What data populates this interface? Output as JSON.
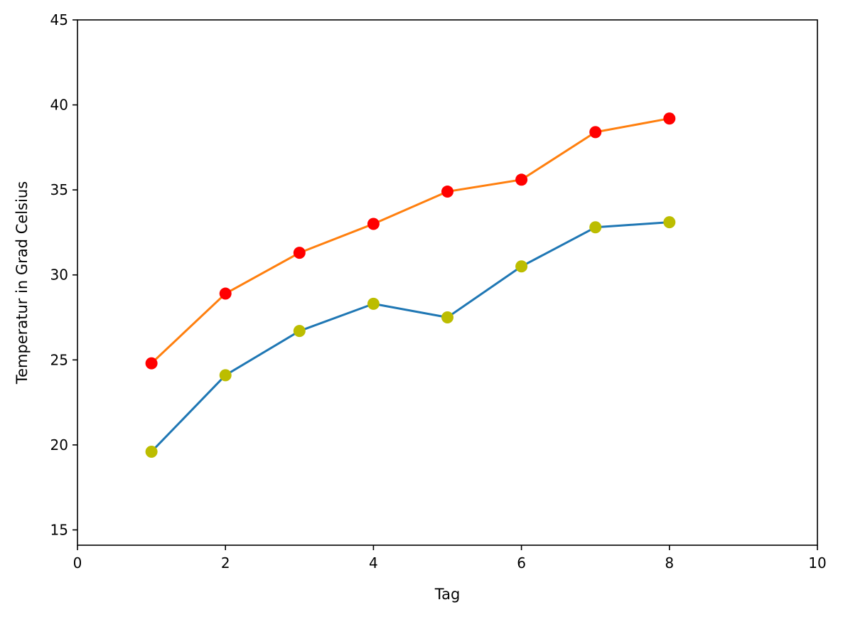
{
  "chart_data": {
    "type": "line",
    "title": "",
    "xlabel": "Tag",
    "ylabel": "Temperatur in Grad Celsius",
    "xlim": [
      0,
      10
    ],
    "ylim": [
      14.1,
      45
    ],
    "xticks": [
      0,
      2,
      4,
      6,
      8,
      10
    ],
    "yticks": [
      15,
      20,
      25,
      30,
      35,
      40,
      45
    ],
    "grid": false,
    "x": [
      1,
      2,
      3,
      4,
      5,
      6,
      7,
      8
    ],
    "series": [
      {
        "values": [
          19.6,
          24.1,
          26.7,
          28.3,
          27.5,
          30.5,
          32.8,
          33.1
        ],
        "line_color": "#1f77b4",
        "marker_color": "#bcbd00"
      },
      {
        "values": [
          24.8,
          28.9,
          31.3,
          33.0,
          34.9,
          35.6,
          38.4,
          39.2
        ],
        "line_color": "#ff7f0e",
        "marker_color": "#ff0000"
      }
    ]
  }
}
